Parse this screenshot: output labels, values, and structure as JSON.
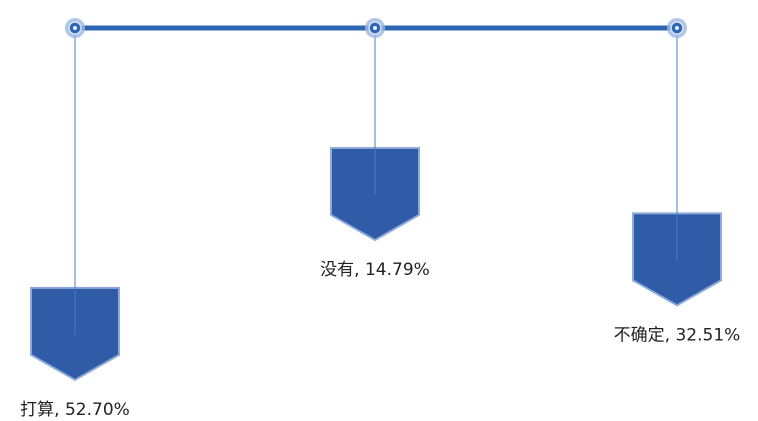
{
  "chart_data": {
    "type": "pendant",
    "values": [
      52.7,
      14.79,
      32.51
    ],
    "value_labels": [
      "打算, 52.70%",
      "没有, 14.79%",
      "不确定, 32.51%"
    ],
    "color": "#2f5ba7"
  }
}
